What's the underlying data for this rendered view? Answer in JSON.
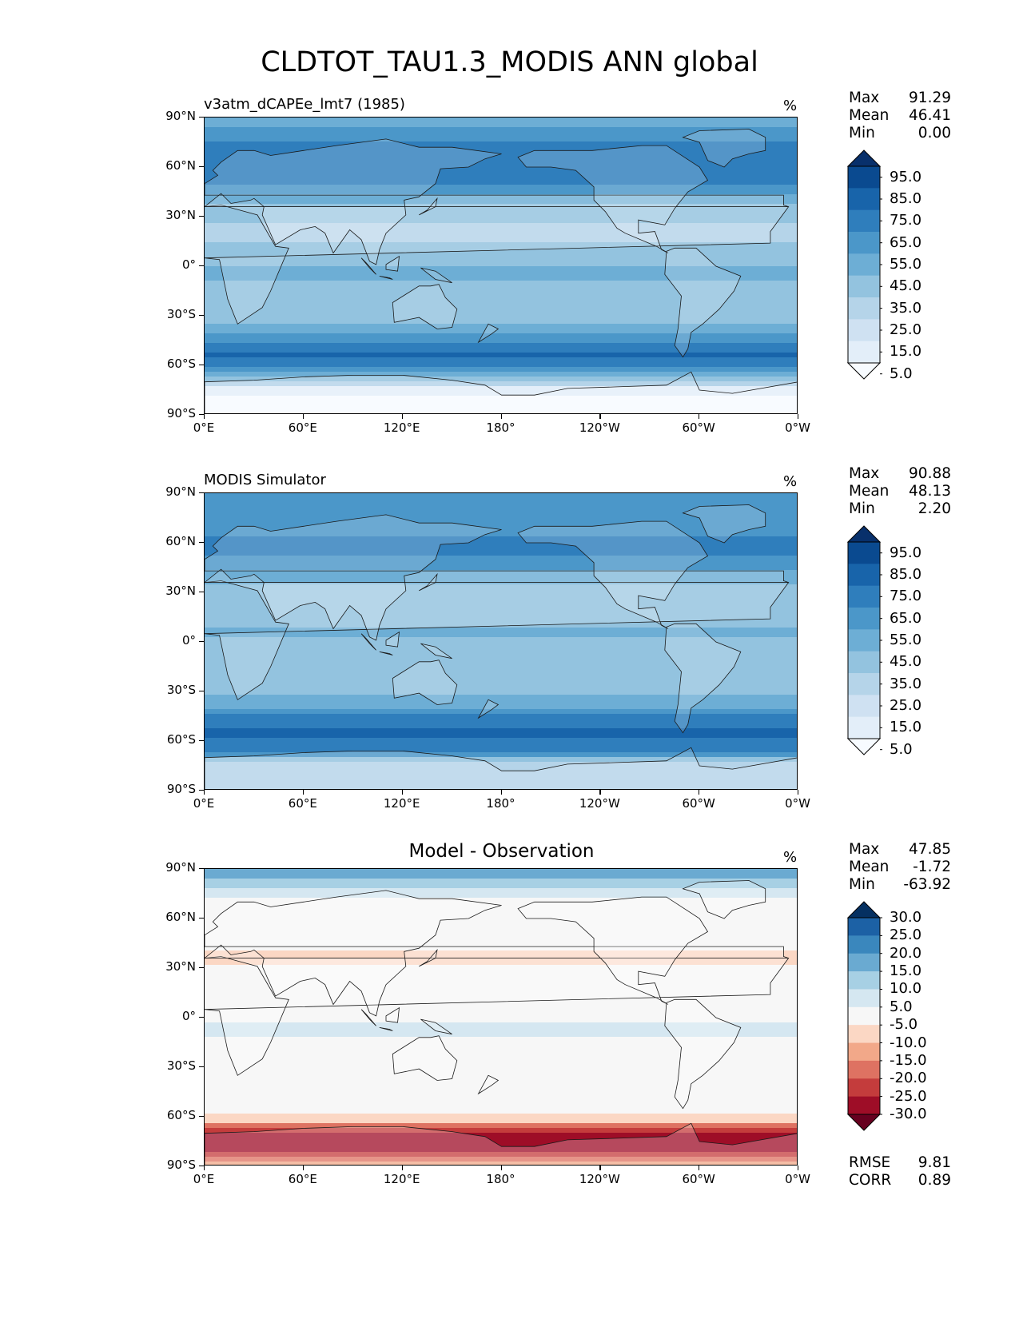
{
  "title": "CLDTOT_TAU1.3_MODIS ANN global",
  "lat_labels": [
    "90°N",
    "60°N",
    "30°N",
    "0°",
    "30°S",
    "60°S",
    "90°S"
  ],
  "lon_labels": [
    "0°E",
    "60°E",
    "120°E",
    "180°",
    "120°W",
    "60°W",
    "0°W"
  ],
  "chart_data": [
    {
      "type": "heatmap",
      "id": "test",
      "title": "v3atm_dCAPEe_lmt7 (1985)",
      "units": "%",
      "stats": {
        "max": "91.29",
        "mean": "46.41",
        "min": "0.00"
      },
      "colorbar_levels": [
        "95.0",
        "85.0",
        "75.0",
        "65.0",
        "55.0",
        "45.0",
        "35.0",
        "25.0",
        "15.0",
        "5.0"
      ],
      "colormap": "Blues",
      "zonal_profile": {
        "lat": [
          90,
          75,
          65,
          55,
          45,
          35,
          20,
          5,
          -5,
          -20,
          -35,
          -45,
          -55,
          -65,
          -75,
          -90
        ],
        "value": [
          50,
          72,
          70,
          75,
          66,
          45,
          35,
          48,
          52,
          42,
          50,
          68,
          82,
          60,
          12,
          5
        ]
      }
    },
    {
      "type": "heatmap",
      "id": "reference",
      "title": "MODIS Simulator",
      "units": "%",
      "stats": {
        "max": "90.88",
        "mean": "48.13",
        "min": "2.20"
      },
      "colorbar_levels": [
        "95.0",
        "85.0",
        "75.0",
        "65.0",
        "55.0",
        "45.0",
        "35.0",
        "25.0",
        "15.0",
        "5.0"
      ],
      "colormap": "Blues",
      "zonal_profile": {
        "lat": [
          90,
          75,
          65,
          55,
          45,
          35,
          20,
          5,
          -5,
          -20,
          -35,
          -45,
          -55,
          -65,
          -75,
          -90
        ],
        "value": [
          66,
          62,
          70,
          73,
          64,
          50,
          40,
          52,
          44,
          40,
          52,
          70,
          84,
          72,
          35,
          32
        ]
      }
    },
    {
      "type": "heatmap",
      "id": "difference",
      "title": "Model - Observation",
      "units": "%",
      "stats": {
        "max": "47.85",
        "mean": "-1.72",
        "min": "-63.92"
      },
      "colorbar_levels": [
        "30.0",
        "25.0",
        "20.0",
        "15.0",
        "10.0",
        "5.0",
        "-5.0",
        "-10.0",
        "-15.0",
        "-20.0",
        "-25.0",
        "-30.0"
      ],
      "colormap": "RdBu",
      "metrics": {
        "rmse": "9.81",
        "corr": "0.89"
      },
      "zonal_profile": {
        "lat": [
          90,
          80,
          65,
          50,
          35,
          20,
          5,
          -5,
          -20,
          -35,
          -50,
          -62,
          -70,
          -80,
          -90
        ],
        "value": [
          18,
          12,
          -3,
          0,
          -8,
          3,
          -4,
          6,
          4,
          -1,
          -2,
          -6,
          -30,
          -28,
          -10
        ]
      }
    }
  ],
  "metric_labels": {
    "max": "Max",
    "mean": "Mean",
    "min": "Min",
    "rmse": "RMSE",
    "corr": "CORR"
  }
}
